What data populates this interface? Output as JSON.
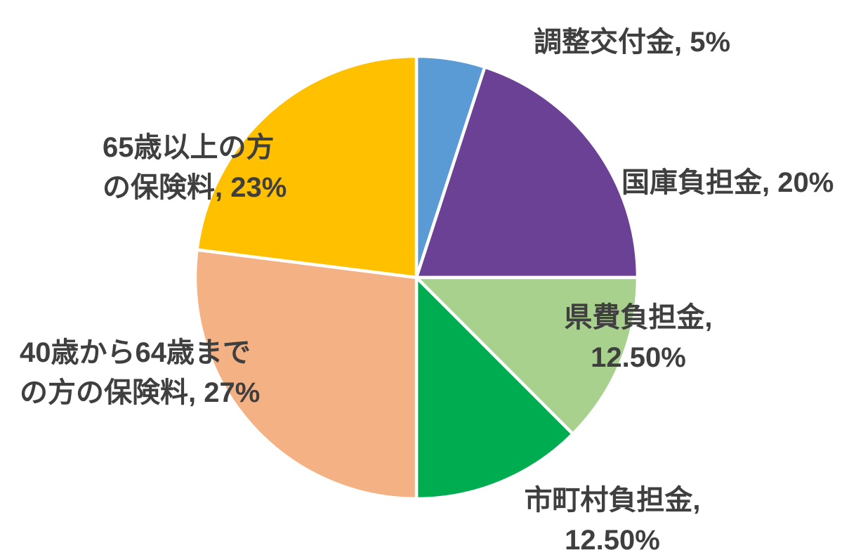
{
  "chart_data": {
    "type": "pie",
    "title": "",
    "unit": "%",
    "start_angle_deg": 0,
    "direction": "clockwise",
    "background_color": "#FFFFFF",
    "separator_color": "#FFFFFF",
    "label_text_color": "#3F3F3F",
    "legend": "none (labels placed outside slices)",
    "slices": [
      {
        "name": "調整交付金",
        "value": 5,
        "display": "調整交付金, 5%",
        "label_lines": [
          "調整交付金, 5%"
        ],
        "color": "#5B9BD5"
      },
      {
        "name": "国庫負担金",
        "value": 20,
        "display": "国庫負担金, 20%",
        "label_lines": [
          "国庫負担金, 20%"
        ],
        "color": "#6B4196"
      },
      {
        "name": "県費負担金",
        "value": 12.5,
        "display": "県費負担金, 12.50%",
        "label_lines": [
          "県費負担金,",
          "12.50%"
        ],
        "color": "#A9D18E"
      },
      {
        "name": "市町村負担金",
        "value": 12.5,
        "display": "市町村負担金, 12.50%",
        "label_lines": [
          "市町村負担金,",
          "12.50%"
        ],
        "color": "#00AC50"
      },
      {
        "name": "40歳から64歳までの方の保険料",
        "value": 27,
        "display": "40歳から64歳までの方の保険料, 27%",
        "label_lines": [
          "40歳から64歳まで",
          "の方の保険料, 27%"
        ],
        "color": "#F4B183"
      },
      {
        "name": "65歳以上の方の保険料",
        "value": 23,
        "display": "65歳以上の方の保険料, 23%",
        "label_lines": [
          "65歳以上の方",
          "の保険料, 23%"
        ],
        "color": "#FFC000"
      }
    ]
  }
}
